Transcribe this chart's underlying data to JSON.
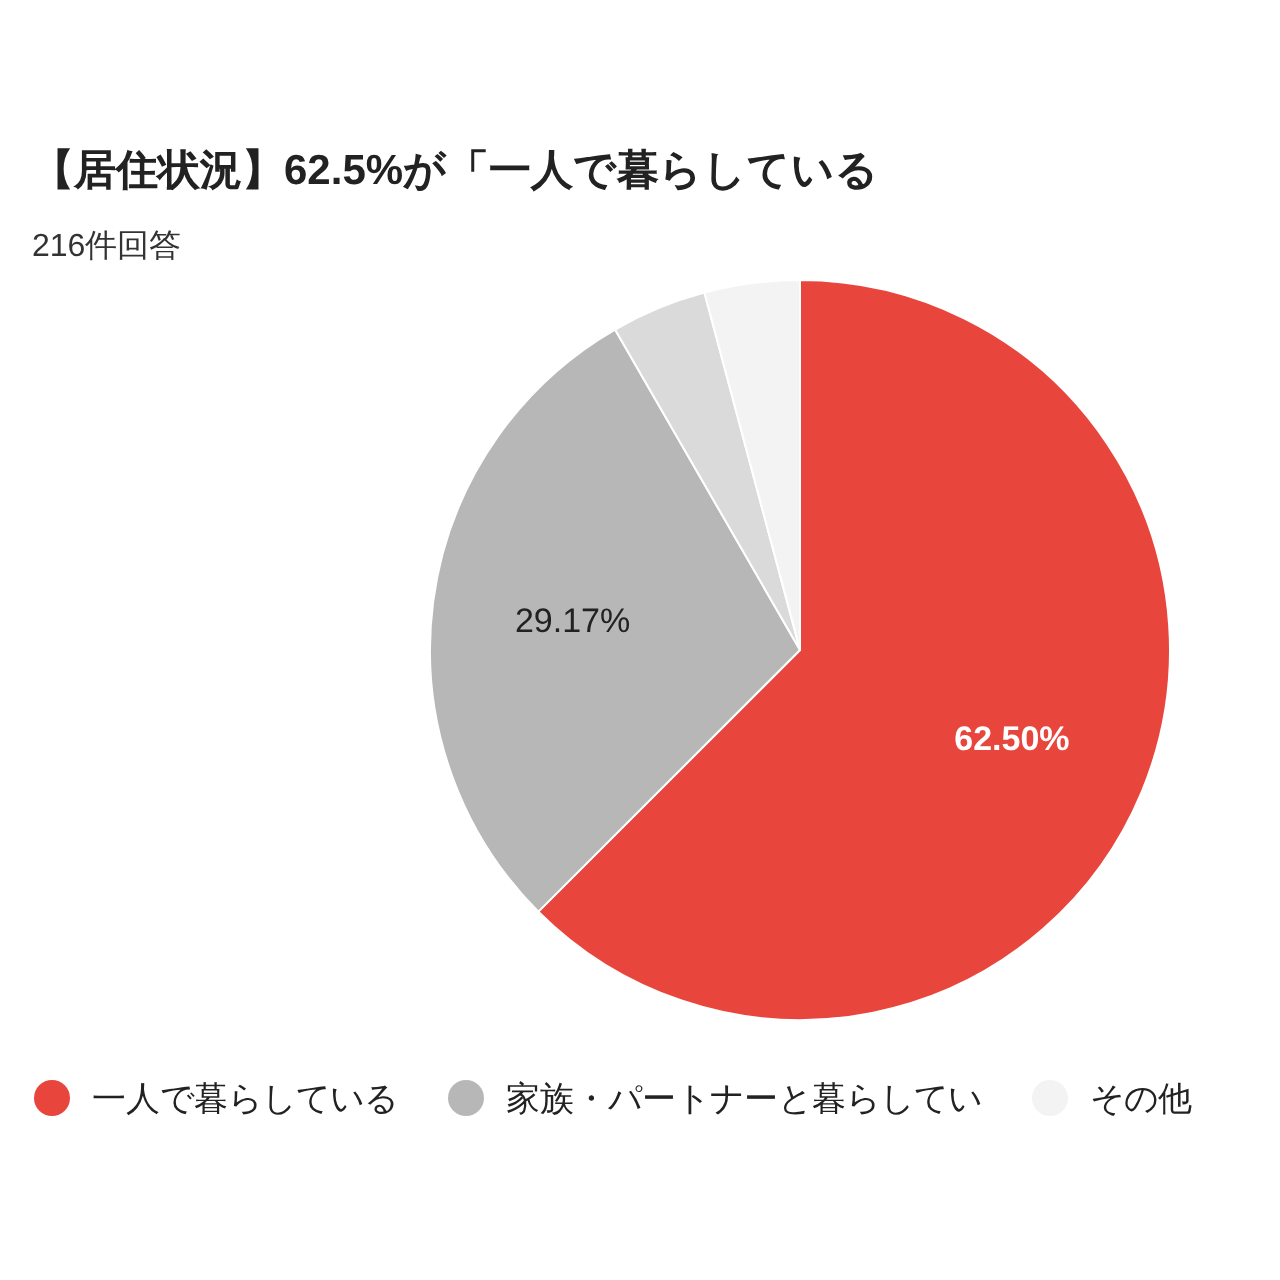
{
  "chart_data": {
    "type": "pie",
    "title": "【居住状況】62.5%が「一人で暮らしている",
    "subtitle": "216件回答",
    "categories": [
      "一人で暮らしている",
      "家族・パートナーと暮らしてい",
      null,
      "その他"
    ],
    "values": [
      62.5,
      29.17,
      4.17,
      4.16
    ],
    "colors": [
      "#e8453c",
      "#b7b7b7",
      "#dadada",
      "#f3f3f3"
    ],
    "value_labels": [
      "62.50%",
      "29.17%",
      null,
      null
    ],
    "legend": "bottom"
  }
}
